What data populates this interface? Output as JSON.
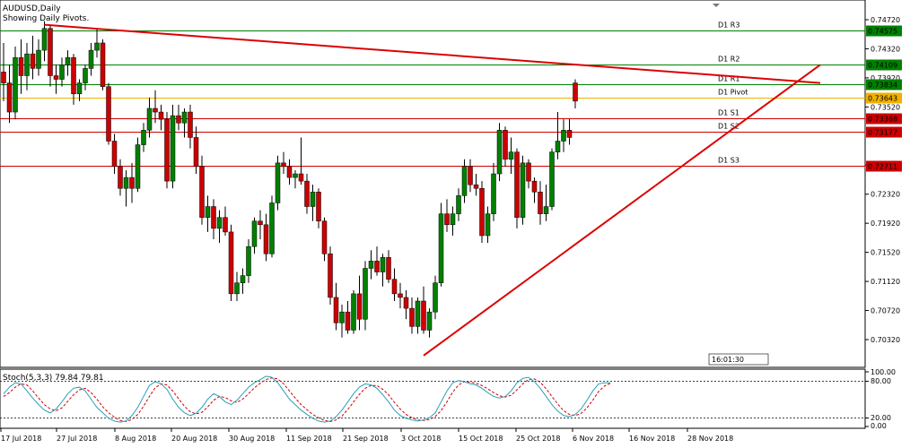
{
  "header": {
    "symbol": "AUDUSD,Daily",
    "indicator_note": "Showing Daily Pivots."
  },
  "colors": {
    "background": "#ffffff",
    "bull": "#008000",
    "bear": "#cc0000",
    "trendline": "#dd0000",
    "resistance": "#008000",
    "support": "#cc0000",
    "pivot": "#f0b000",
    "stoch_main": "#2a9fb8",
    "stoch_signal": "#cc0000"
  },
  "pivots": [
    {
      "label": "D1 R3",
      "value": "0.74575",
      "type": "resistance"
    },
    {
      "label": "D1 R2",
      "value": "0.74109",
      "type": "resistance"
    },
    {
      "label": "D1 R1",
      "value": "0.73834",
      "type": "resistance"
    },
    {
      "label": "D1 Pivot",
      "value": "0.73643",
      "type": "pivot"
    },
    {
      "label": "D1 S1",
      "value": "0.73368",
      "type": "support"
    },
    {
      "label": "D1 S2",
      "value": "0.73177",
      "type": "support"
    },
    {
      "label": "D1 S3",
      "value": "0.72711",
      "type": "support"
    }
  ],
  "countdown": "16:01:30",
  "stoch": {
    "label": "Stoch(5,3,3) 79.84 79.81",
    "levels": [
      "100.00",
      "80.00",
      "20.00",
      "0.00"
    ]
  },
  "chart_data": {
    "type": "candlestick",
    "title": "AUDUSD,Daily",
    "y_ticks": [
      "0.74720",
      "0.74320",
      "0.73920",
      "0.73520",
      "0.72720",
      "0.72320",
      "0.71920",
      "0.71520",
      "0.71120",
      "0.70720",
      "0.70320"
    ],
    "x_ticks": [
      "17 Jul 2018",
      "27 Jul 2018",
      "8 Aug 2018",
      "20 Aug 2018",
      "30 Aug 2018",
      "11 Sep 2018",
      "21 Sep 2018",
      "3 Oct 2018",
      "15 Oct 2018",
      "25 Oct 2018",
      "6 Nov 2018",
      "16 Nov 2018",
      "28 Nov 2018"
    ],
    "ylim": [
      0.6995,
      0.75
    ],
    "grid": false,
    "candles": [
      [
        0.74,
        0.744,
        0.736,
        0.7385
      ],
      [
        0.7385,
        0.741,
        0.733,
        0.7345
      ],
      [
        0.7345,
        0.7435,
        0.7335,
        0.742
      ],
      [
        0.742,
        0.7445,
        0.737,
        0.7395
      ],
      [
        0.7395,
        0.744,
        0.7375,
        0.7425
      ],
      [
        0.7425,
        0.745,
        0.739,
        0.7405
      ],
      [
        0.7405,
        0.7445,
        0.7395,
        0.743
      ],
      [
        0.743,
        0.747,
        0.7415,
        0.746
      ],
      [
        0.746,
        0.7465,
        0.738,
        0.7395
      ],
      [
        0.7395,
        0.741,
        0.737,
        0.739
      ],
      [
        0.739,
        0.742,
        0.738,
        0.741
      ],
      [
        0.741,
        0.743,
        0.7395,
        0.742
      ],
      [
        0.742,
        0.7425,
        0.7355,
        0.737
      ],
      [
        0.737,
        0.739,
        0.736,
        0.7385
      ],
      [
        0.7385,
        0.741,
        0.7375,
        0.7405
      ],
      [
        0.7405,
        0.744,
        0.7395,
        0.743
      ],
      [
        0.743,
        0.746,
        0.742,
        0.744
      ],
      [
        0.744,
        0.7445,
        0.7375,
        0.738
      ],
      [
        0.738,
        0.7385,
        0.73,
        0.7305
      ],
      [
        0.7305,
        0.7315,
        0.726,
        0.727
      ],
      [
        0.727,
        0.728,
        0.723,
        0.724
      ],
      [
        0.724,
        0.7265,
        0.7215,
        0.7255
      ],
      [
        0.7255,
        0.7275,
        0.722,
        0.724
      ],
      [
        0.724,
        0.731,
        0.7235,
        0.73
      ],
      [
        0.73,
        0.733,
        0.729,
        0.732
      ],
      [
        0.732,
        0.7365,
        0.731,
        0.735
      ],
      [
        0.735,
        0.7375,
        0.733,
        0.7345
      ],
      [
        0.7345,
        0.7355,
        0.732,
        0.7335
      ],
      [
        0.7335,
        0.7345,
        0.724,
        0.725
      ],
      [
        0.725,
        0.7355,
        0.724,
        0.734
      ],
      [
        0.734,
        0.7355,
        0.732,
        0.733
      ],
      [
        0.733,
        0.735,
        0.731,
        0.7345
      ],
      [
        0.7345,
        0.7355,
        0.7295,
        0.731
      ],
      [
        0.731,
        0.7325,
        0.726,
        0.727
      ],
      [
        0.727,
        0.7285,
        0.719,
        0.72
      ],
      [
        0.72,
        0.723,
        0.718,
        0.7215
      ],
      [
        0.7215,
        0.7225,
        0.717,
        0.7185
      ],
      [
        0.7185,
        0.721,
        0.7165,
        0.72
      ],
      [
        0.72,
        0.7215,
        0.7175,
        0.718
      ],
      [
        0.718,
        0.719,
        0.7085,
        0.7095
      ],
      [
        0.7095,
        0.7125,
        0.7085,
        0.711
      ],
      [
        0.711,
        0.713,
        0.7095,
        0.712
      ],
      [
        0.712,
        0.717,
        0.711,
        0.716
      ],
      [
        0.716,
        0.72,
        0.715,
        0.7195
      ],
      [
        0.7195,
        0.721,
        0.717,
        0.719
      ],
      [
        0.719,
        0.7205,
        0.714,
        0.715
      ],
      [
        0.715,
        0.723,
        0.7145,
        0.722
      ],
      [
        0.722,
        0.7285,
        0.721,
        0.7275
      ],
      [
        0.7275,
        0.729,
        0.726,
        0.727
      ],
      [
        0.727,
        0.728,
        0.7245,
        0.7255
      ],
      [
        0.7255,
        0.7265,
        0.724,
        0.726
      ],
      [
        0.726,
        0.731,
        0.7245,
        0.725
      ],
      [
        0.725,
        0.726,
        0.7205,
        0.7215
      ],
      [
        0.7215,
        0.7245,
        0.7195,
        0.7235
      ],
      [
        0.7235,
        0.724,
        0.7185,
        0.7195
      ],
      [
        0.7195,
        0.72,
        0.714,
        0.715
      ],
      [
        0.715,
        0.716,
        0.708,
        0.709
      ],
      [
        0.709,
        0.711,
        0.7045,
        0.7055
      ],
      [
        0.7055,
        0.708,
        0.7035,
        0.707
      ],
      [
        0.707,
        0.7085,
        0.704,
        0.7045
      ],
      [
        0.7045,
        0.71,
        0.704,
        0.7095
      ],
      [
        0.7095,
        0.712,
        0.7045,
        0.706
      ],
      [
        0.706,
        0.714,
        0.7045,
        0.713
      ],
      [
        0.713,
        0.7155,
        0.7115,
        0.714
      ],
      [
        0.714,
        0.716,
        0.712,
        0.7125
      ],
      [
        0.7125,
        0.715,
        0.7105,
        0.7145
      ],
      [
        0.7145,
        0.7155,
        0.711,
        0.7115
      ],
      [
        0.7115,
        0.713,
        0.7085,
        0.7095
      ],
      [
        0.7095,
        0.711,
        0.7075,
        0.709
      ],
      [
        0.709,
        0.71,
        0.706,
        0.7075
      ],
      [
        0.7075,
        0.709,
        0.704,
        0.705
      ],
      [
        0.705,
        0.709,
        0.704,
        0.7085
      ],
      [
        0.7085,
        0.7105,
        0.704,
        0.7045
      ],
      [
        0.7045,
        0.7075,
        0.7035,
        0.707
      ],
      [
        0.707,
        0.712,
        0.706,
        0.711
      ],
      [
        0.711,
        0.722,
        0.7105,
        0.7205
      ],
      [
        0.7205,
        0.7225,
        0.718,
        0.719
      ],
      [
        0.719,
        0.7215,
        0.7175,
        0.7205
      ],
      [
        0.7205,
        0.724,
        0.7195,
        0.723
      ],
      [
        0.723,
        0.728,
        0.722,
        0.727
      ],
      [
        0.727,
        0.728,
        0.7235,
        0.7245
      ],
      [
        0.7245,
        0.726,
        0.723,
        0.724
      ],
      [
        0.724,
        0.725,
        0.7165,
        0.7175
      ],
      [
        0.7175,
        0.7215,
        0.7165,
        0.7205
      ],
      [
        0.7205,
        0.7275,
        0.7195,
        0.726
      ],
      [
        0.726,
        0.733,
        0.725,
        0.732
      ],
      [
        0.732,
        0.7325,
        0.727,
        0.728
      ],
      [
        0.728,
        0.731,
        0.726,
        0.729
      ],
      [
        0.729,
        0.7295,
        0.7185,
        0.72
      ],
      [
        0.72,
        0.7285,
        0.719,
        0.7275
      ],
      [
        0.7275,
        0.728,
        0.724,
        0.725
      ],
      [
        0.725,
        0.7255,
        0.722,
        0.7235
      ],
      [
        0.7235,
        0.725,
        0.719,
        0.7205
      ],
      [
        0.7205,
        0.7245,
        0.7195,
        0.7215
      ],
      [
        0.7215,
        0.7295,
        0.721,
        0.729
      ],
      [
        0.729,
        0.7345,
        0.728,
        0.7305
      ],
      [
        0.7305,
        0.7335,
        0.729,
        0.732
      ],
      [
        0.732,
        0.7335,
        0.73,
        0.731
      ],
      [
        0.7385,
        0.739,
        0.735,
        0.736
      ]
    ],
    "trendlines": [
      {
        "from": [
          7,
          0.7465
        ],
        "to": [
          140,
          0.7385
        ]
      },
      {
        "from": [
          72,
          0.701
        ],
        "to": [
          140,
          0.741
        ]
      }
    ]
  },
  "stoch_data": {
    "main": [
      60,
      72,
      80,
      78,
      65,
      52,
      40,
      30,
      25,
      32,
      45,
      60,
      70,
      72,
      65,
      50,
      35,
      25,
      15,
      10,
      8,
      10,
      20,
      35,
      55,
      75,
      82,
      78,
      68,
      50,
      35,
      25,
      20,
      24,
      35,
      50,
      60,
      55,
      45,
      40,
      48,
      60,
      72,
      80,
      86,
      92,
      90,
      80,
      65,
      50,
      40,
      30,
      22,
      15,
      10,
      8,
      10,
      18,
      30,
      45,
      60,
      72,
      78,
      76,
      70,
      58,
      45,
      30,
      20,
      15,
      12,
      10,
      12,
      16,
      25,
      45,
      65,
      80,
      84,
      82,
      78,
      76,
      70,
      62,
      55,
      52,
      55,
      65,
      80,
      88,
      90,
      82,
      70,
      55,
      40,
      28,
      20,
      18,
      22,
      32,
      48,
      65,
      78,
      80,
      80
    ],
    "signal": [
      55,
      62,
      72,
      78,
      76,
      65,
      52,
      40,
      32,
      29,
      34,
      46,
      58,
      67,
      70,
      62,
      50,
      36,
      25,
      17,
      11,
      9,
      13,
      22,
      37,
      55,
      71,
      78,
      76,
      65,
      51,
      37,
      27,
      23,
      26,
      36,
      48,
      55,
      53,
      47,
      44,
      50,
      60,
      71,
      79,
      86,
      89,
      87,
      78,
      65,
      52,
      40,
      31,
      22,
      16,
      11,
      9,
      12,
      19,
      31,
      45,
      59,
      70,
      75,
      75,
      68,
      58,
      44,
      32,
      22,
      16,
      12,
      11,
      13,
      18,
      29,
      45,
      63,
      76,
      82,
      81,
      79,
      75,
      69,
      62,
      56,
      54,
      57,
      67,
      78,
      86,
      87,
      81,
      69,
      55,
      41,
      29,
      22,
      20,
      24,
      34,
      48,
      64,
      74,
      79
    ]
  }
}
